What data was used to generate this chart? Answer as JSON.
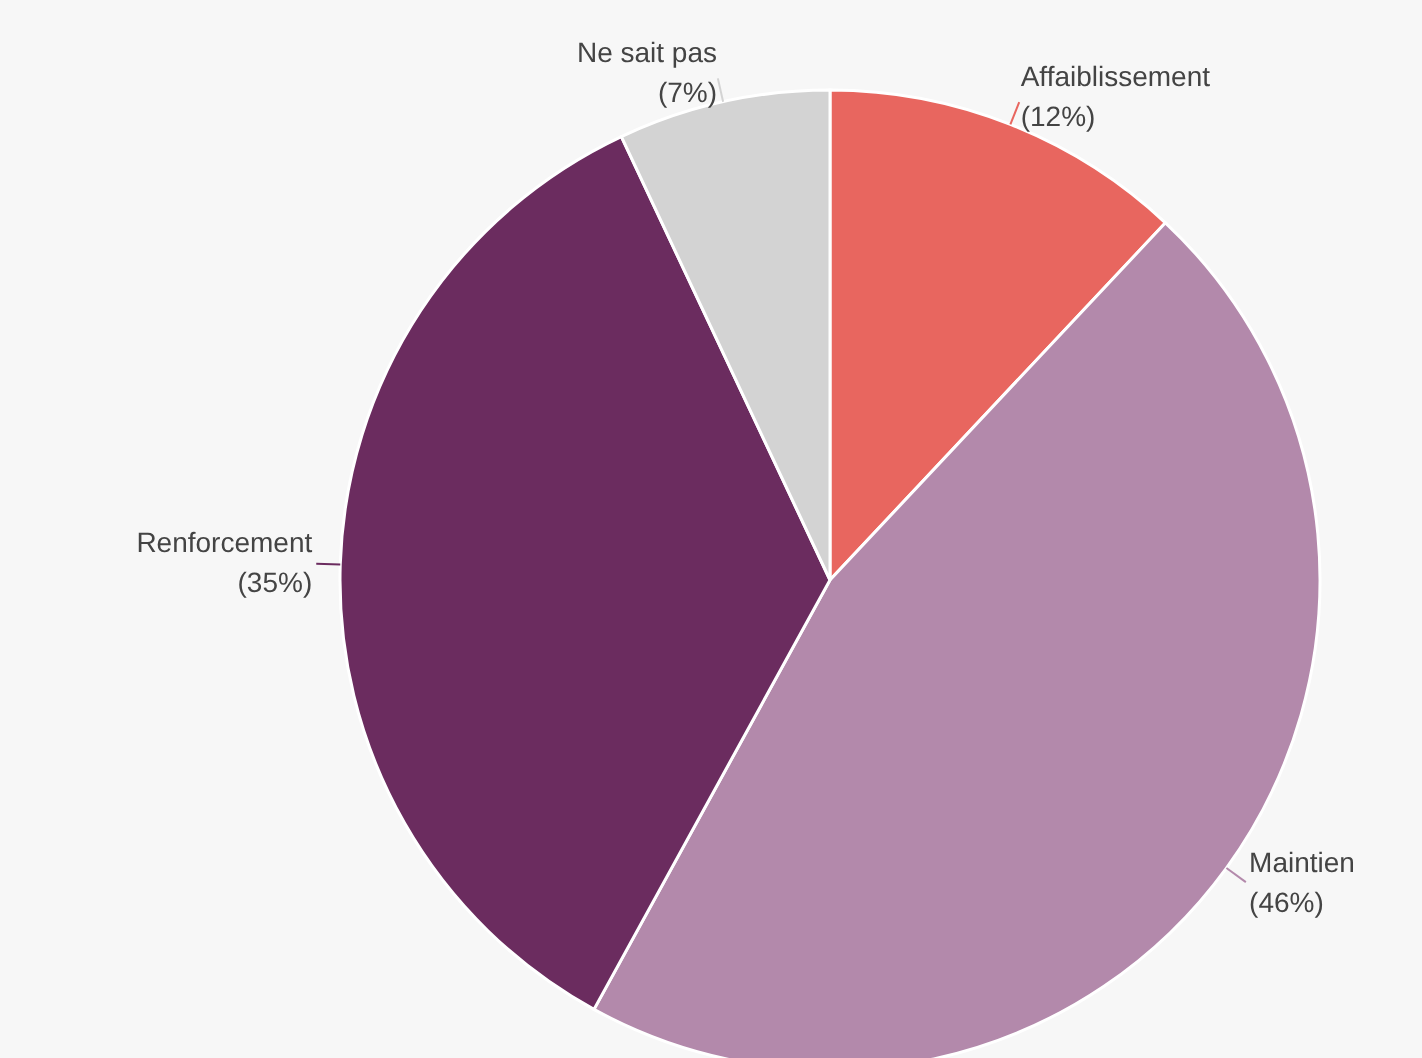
{
  "chart_data": {
    "type": "pie",
    "categories": [
      "Affaiblissement",
      "Maintien",
      "Renforcement",
      "Ne sait pas"
    ],
    "values": [
      12,
      46,
      35,
      7
    ],
    "value_labels": [
      "(12%)",
      "(46%)",
      "(35%)",
      "(7%)"
    ],
    "colors": [
      "#e8665f",
      "#b389ab",
      "#6b2c5f",
      "#d3d3d3"
    ]
  }
}
